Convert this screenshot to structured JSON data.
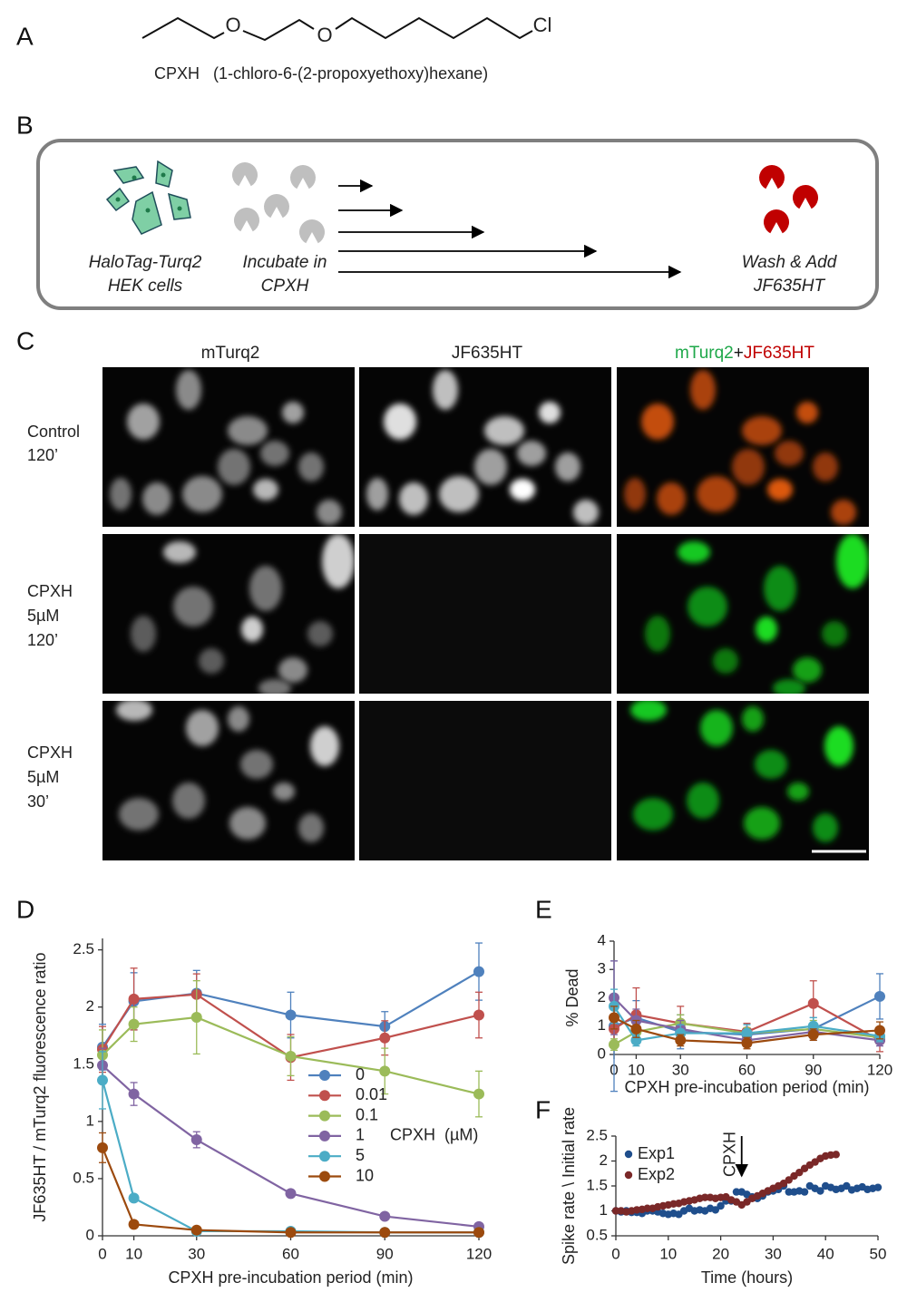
{
  "panel_labels": [
    "A",
    "B",
    "C",
    "D",
    "E",
    "F"
  ],
  "structure": {
    "atoms": [
      "O",
      "O",
      "Cl"
    ],
    "caption": "CPXH   (1-chloro-6-(2-propoxyethoxy)hexane)"
  },
  "schematic": {
    "steps": [
      [
        "HaloTag-Turq2",
        "HEK cells"
      ],
      [
        "Incubate in",
        "CPXH"
      ],
      [
        "Wash & Add",
        "JF635HT"
      ]
    ]
  },
  "micrographs": {
    "columns": [
      "mTurq2",
      "JF635HT"
    ],
    "merged_column": [
      "mTurq2",
      "+",
      "JF635HT"
    ],
    "rows": [
      [
        "Control",
        "120’"
      ],
      [
        "CPXH",
        "5µM",
        "120’"
      ],
      [
        "CPXH",
        "5µM",
        "30’"
      ]
    ]
  },
  "chart_data": [
    {
      "type": "line",
      "x": [
        0,
        10,
        30,
        60,
        90,
        120
      ],
      "xlim": [
        0,
        120
      ],
      "xticks": [
        0,
        10,
        30,
        60,
        90,
        120
      ],
      "ylim": [
        0,
        2.6
      ],
      "yticks": [
        0,
        0.5,
        1,
        1.5,
        2,
        2.5
      ],
      "xlabel": "CPXH pre-incubation period (min)",
      "ylabel": "JF635HT / mTurq2 fluorescence ratio",
      "legend_title": "CPXH  (µM)",
      "series": [
        {
          "name": "0",
          "color": "#4f81bd",
          "values": [
            1.65,
            2.05,
            2.12,
            1.93,
            1.83,
            2.31
          ],
          "errors": [
            0.2,
            0.25,
            0.2,
            0.2,
            0.13,
            0.25
          ]
        },
        {
          "name": "0.01",
          "color": "#c0504d",
          "values": [
            1.63,
            2.07,
            2.11,
            1.56,
            1.73,
            1.93
          ],
          "errors": [
            0.2,
            0.27,
            0.18,
            0.2,
            0.15,
            0.2
          ]
        },
        {
          "name": "0.1",
          "color": "#9bbb59",
          "values": [
            1.58,
            1.85,
            1.91,
            1.57,
            1.44,
            1.24
          ],
          "errors": [
            0.22,
            0.15,
            0.32,
            0.17,
            0.2,
            0.2
          ]
        },
        {
          "name": "1",
          "color": "#8064a2",
          "values": [
            1.49,
            1.24,
            0.84,
            0.37,
            0.17,
            0.08
          ],
          "errors": [
            0.15,
            0.1,
            0.07,
            0.03,
            0.03,
            0.02
          ]
        },
        {
          "name": "5",
          "color": "#4bacc6",
          "values": [
            1.36,
            0.33,
            0.04,
            0.04,
            0.03,
            0.03
          ],
          "errors": [
            0.25,
            0.03,
            0.01,
            0.01,
            0.01,
            0.01
          ]
        },
        {
          "name": "10",
          "color": "#9c4a0e",
          "values": [
            0.77,
            0.1,
            0.05,
            0.03,
            0.03,
            0.03
          ],
          "errors": [
            0.13,
            0.02,
            0.01,
            0.01,
            0.01,
            0.01
          ]
        }
      ]
    },
    {
      "type": "line",
      "x": [
        0,
        10,
        30,
        60,
        90,
        120
      ],
      "xlim": [
        0,
        120
      ],
      "xticks": [
        0,
        10,
        30,
        60,
        90,
        120
      ],
      "ylim": [
        0,
        4
      ],
      "yticks": [
        0,
        1,
        2,
        3,
        4
      ],
      "xlabel": "CPXH pre-incubation period (min)",
      "ylabel": "% Dead",
      "series": [
        {
          "color": "#4f81bd",
          "values": [
            1.0,
            1.3,
            0.8,
            0.7,
            0.9,
            2.05
          ],
          "errors": [
            2.3,
            0.6,
            0.6,
            0.4,
            0.4,
            0.8
          ]
        },
        {
          "color": "#c0504d",
          "values": [
            0.9,
            1.4,
            1.1,
            0.8,
            1.8,
            0.5
          ],
          "errors": [
            0.5,
            0.95,
            0.6,
            0.3,
            0.8,
            0.4
          ]
        },
        {
          "color": "#9bbb59",
          "values": [
            0.35,
            0.8,
            1.1,
            0.75,
            0.9,
            0.6
          ],
          "errors": [
            0.2,
            0.3,
            0.3,
            0.2,
            0.3,
            0.2
          ]
        },
        {
          "color": "#8064a2",
          "values": [
            2.0,
            1.2,
            0.9,
            0.5,
            0.8,
            0.5
          ],
          "errors": [
            1.3,
            0.4,
            0.3,
            0.2,
            0.3,
            0.2
          ]
        },
        {
          "color": "#4bacc6",
          "values": [
            1.7,
            0.5,
            0.75,
            0.75,
            1.0,
            0.65
          ],
          "errors": [
            0.6,
            0.2,
            0.3,
            0.3,
            0.3,
            0.2
          ]
        },
        {
          "color": "#9c4a0e",
          "values": [
            1.3,
            0.9,
            0.5,
            0.4,
            0.7,
            0.85
          ],
          "errors": [
            0.4,
            0.3,
            0.2,
            0.2,
            0.2,
            0.3
          ]
        }
      ]
    },
    {
      "type": "scatter",
      "xlim": [
        0,
        50
      ],
      "xticks": [
        0,
        10,
        20,
        30,
        40,
        50
      ],
      "ylim": [
        0.5,
        2.5
      ],
      "yticks": [
        0.5,
        1,
        1.5,
        2,
        2.5
      ],
      "xlabel": "Time (hours)",
      "ylabel": "Spike rate \\ Initial rate",
      "annotations": [
        {
          "text": "CPXH",
          "x": 24
        }
      ],
      "series": [
        {
          "name": "Exp1",
          "color": "#1f4e8c",
          "x": [
            0,
            1,
            2,
            3,
            4,
            5,
            6,
            7,
            8,
            9,
            10,
            11,
            12,
            13,
            14,
            15,
            16,
            17,
            18,
            19,
            20,
            21,
            22,
            23,
            24,
            25,
            26,
            27,
            28,
            29,
            30,
            31,
            32,
            33,
            34,
            35,
            36,
            37,
            38,
            39,
            40,
            41,
            42,
            43,
            44,
            45,
            46,
            47,
            48,
            49,
            50
          ],
          "values": [
            1.0,
            0.98,
            1.0,
            0.97,
            0.97,
            0.95,
            1.0,
            1.0,
            0.98,
            0.95,
            0.93,
            0.95,
            0.93,
            1.0,
            1.05,
            1.0,
            1.02,
            1.0,
            1.05,
            1.02,
            1.1,
            1.2,
            1.2,
            1.38,
            1.38,
            1.33,
            1.28,
            1.25,
            1.3,
            1.38,
            1.4,
            1.43,
            1.5,
            1.38,
            1.38,
            1.4,
            1.38,
            1.5,
            1.45,
            1.4,
            1.5,
            1.47,
            1.43,
            1.45,
            1.5,
            1.42,
            1.45,
            1.48,
            1.43,
            1.45,
            1.47
          ]
        },
        {
          "name": "Exp2",
          "color": "#7a2828",
          "x": [
            0,
            1,
            2,
            3,
            4,
            5,
            6,
            7,
            8,
            9,
            10,
            11,
            12,
            13,
            14,
            15,
            16,
            17,
            18,
            19,
            20,
            21,
            22,
            23,
            24,
            25,
            26,
            27,
            28,
            29,
            30,
            31,
            32,
            33,
            34,
            35,
            36,
            37,
            38,
            39,
            40,
            41,
            42
          ],
          "values": [
            1.0,
            1.0,
            0.98,
            1.0,
            1.02,
            1.03,
            1.05,
            1.05,
            1.08,
            1.1,
            1.12,
            1.14,
            1.15,
            1.18,
            1.2,
            1.22,
            1.25,
            1.27,
            1.27,
            1.25,
            1.27,
            1.28,
            1.22,
            1.18,
            1.12,
            1.18,
            1.25,
            1.3,
            1.35,
            1.4,
            1.45,
            1.5,
            1.55,
            1.62,
            1.7,
            1.77,
            1.85,
            1.92,
            1.98,
            2.05,
            2.1,
            2.12,
            2.13
          ]
        }
      ]
    }
  ]
}
